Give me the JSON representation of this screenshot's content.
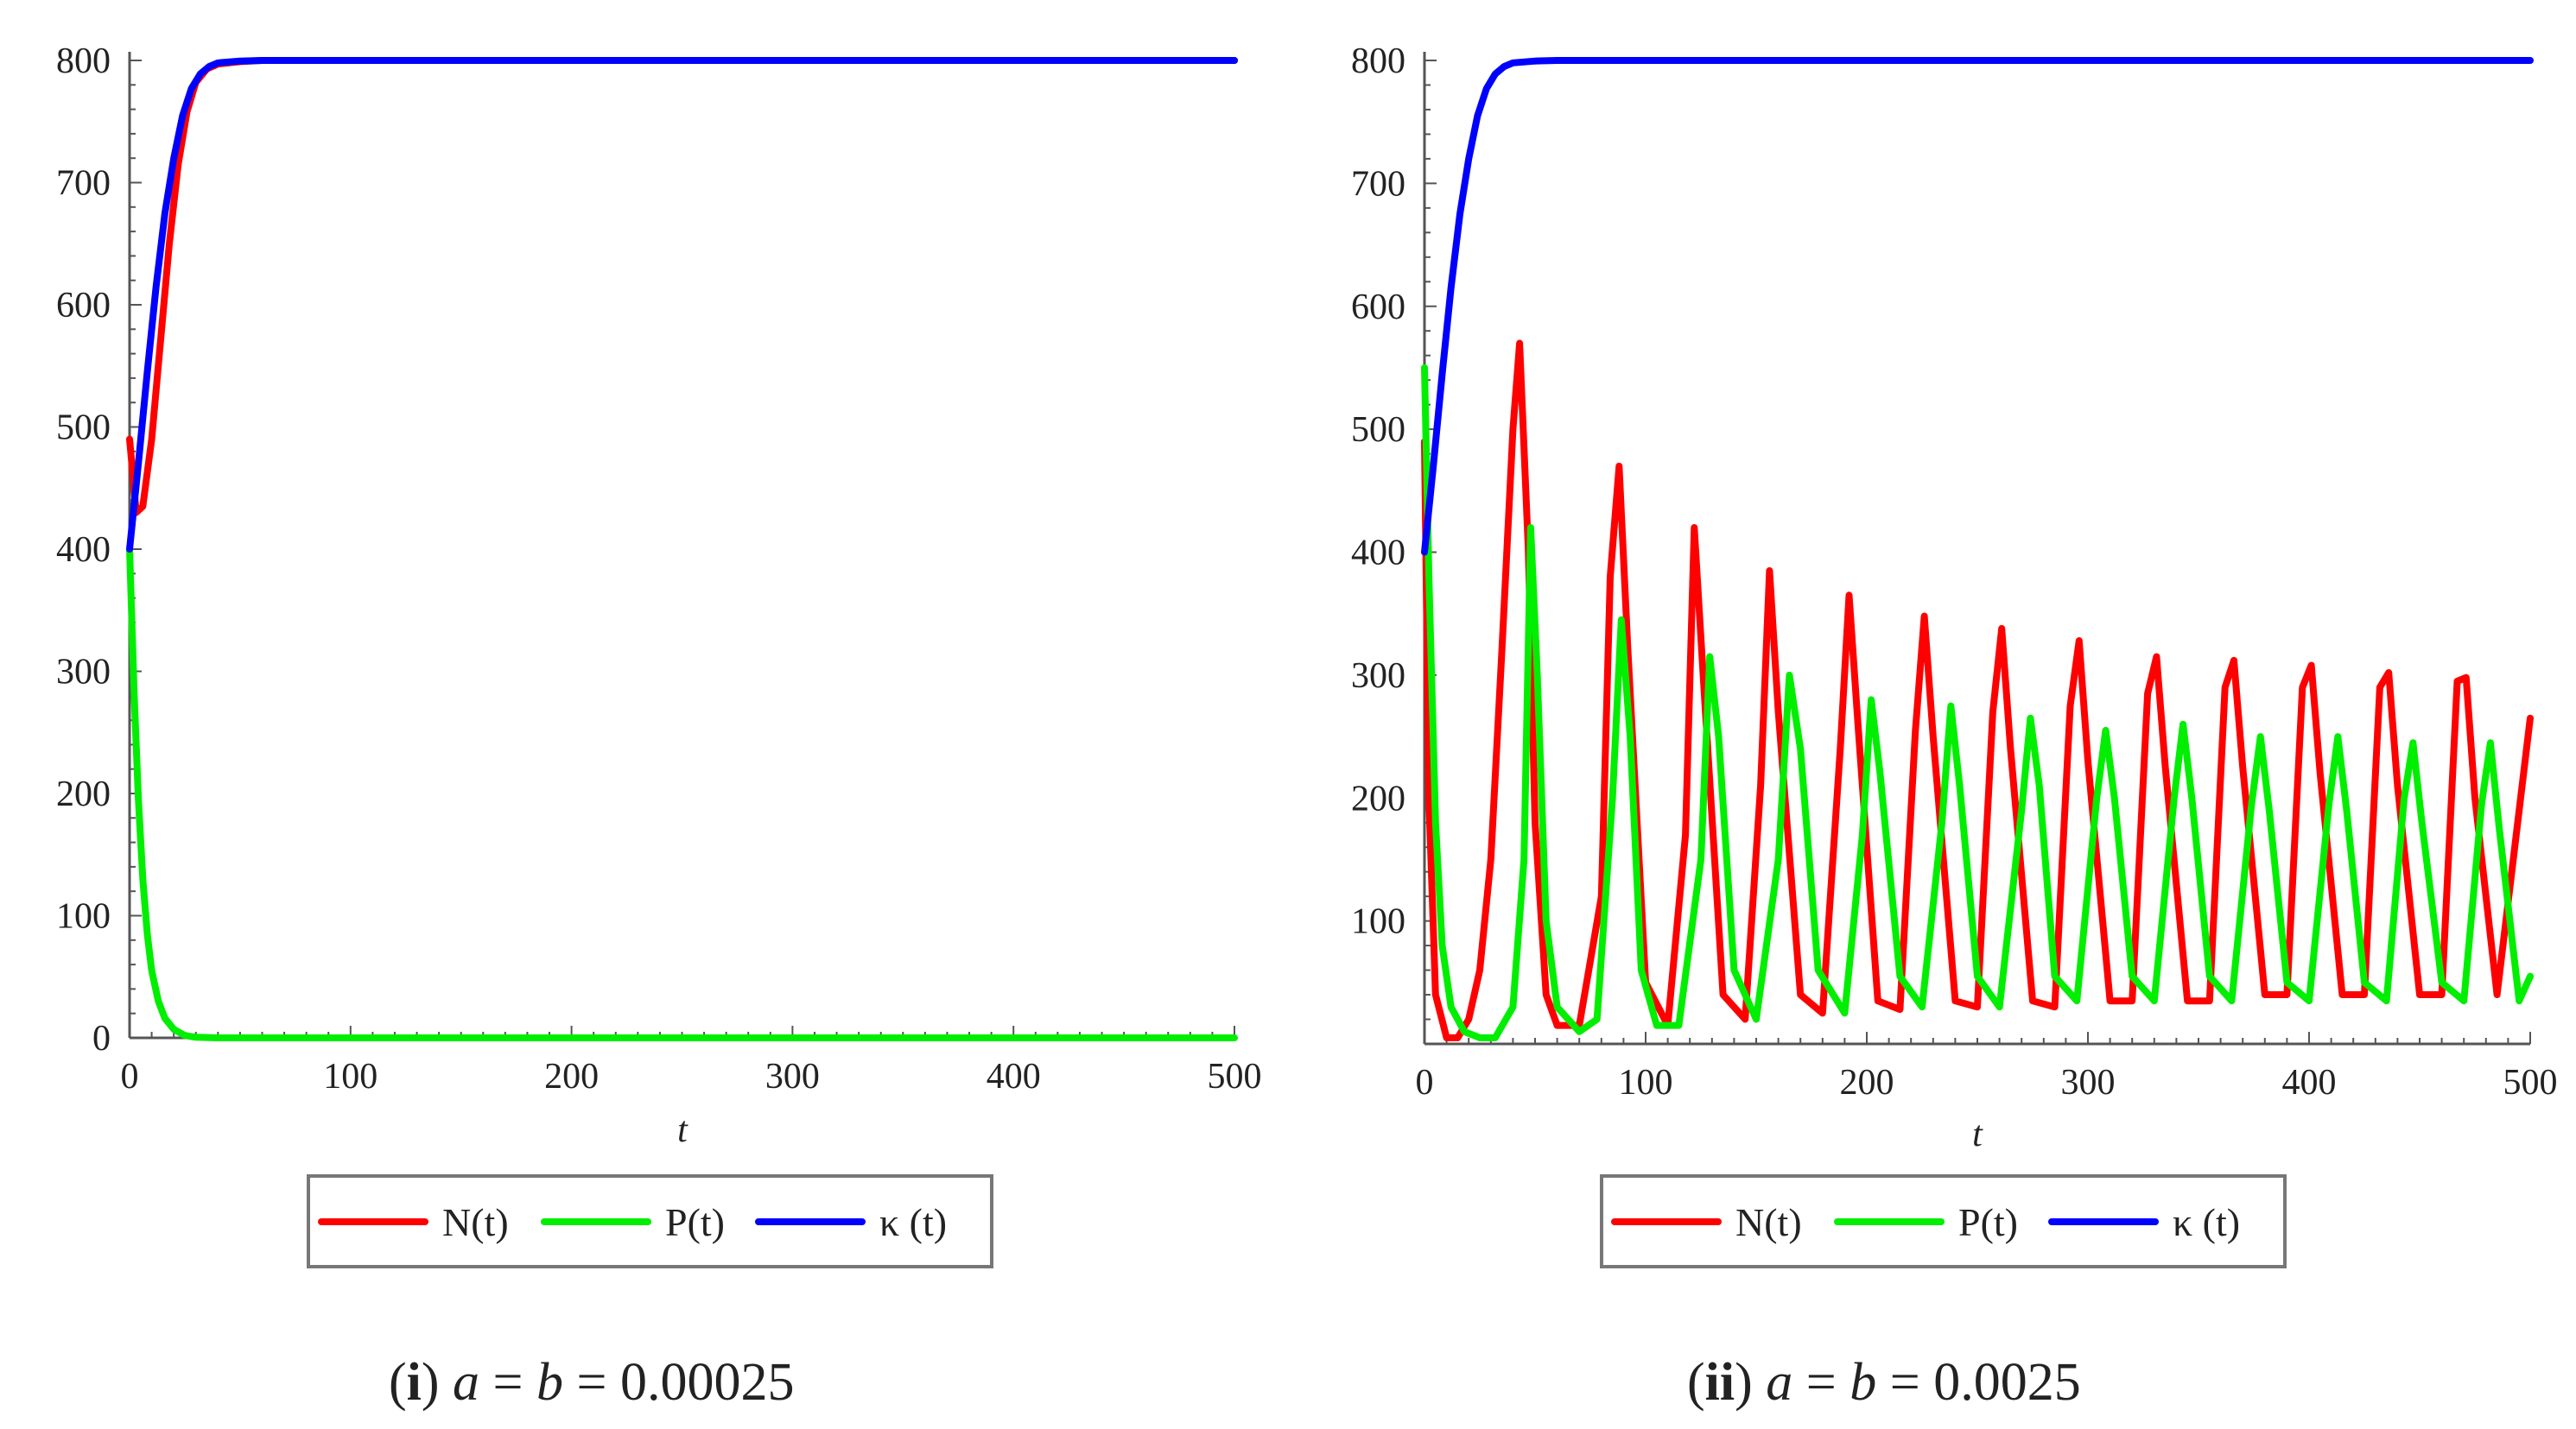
{
  "figure": {
    "panels": [
      {
        "caption": {
          "label": "i",
          "var_a": "a",
          "eq1": " = ",
          "var_b": "b",
          "eq2": " = ",
          "value": "0.00025"
        },
        "legend": [
          {
            "name": "N(t)",
            "color": "#ff0000"
          },
          {
            "name": "P(t)",
            "color": "#00ee00"
          },
          {
            "name": "κ (t)",
            "color": "#0000ff"
          }
        ]
      },
      {
        "caption": {
          "label": "ii",
          "var_a": "a",
          "eq1": " = ",
          "var_b": "b",
          "eq2": " = ",
          "value": "0.0025"
        },
        "legend": [
          {
            "name": "N(t)",
            "color": "#ff0000"
          },
          {
            "name": "P(t)",
            "color": "#00ee00"
          },
          {
            "name": "κ (t)",
            "color": "#0000ff"
          }
        ]
      }
    ]
  },
  "chart_data": [
    {
      "type": "line",
      "title": "(i) a = b = 0.00025",
      "xlabel": "t",
      "ylabel": "",
      "xlim": [
        0,
        500
      ],
      "ylim": [
        0,
        800
      ],
      "xticks": [
        "0",
        "100",
        "200",
        "300",
        "400",
        "500"
      ],
      "yticks": [
        "0",
        "100",
        "200",
        "300",
        "400",
        "500",
        "600",
        "700",
        "800"
      ],
      "series": [
        {
          "name": "N(t)",
          "color": "#ff0000",
          "x": [
            0,
            3,
            6,
            10,
            14,
            18,
            22,
            26,
            30,
            35,
            40,
            50,
            60,
            500
          ],
          "y": [
            490,
            430,
            435,
            490,
            570,
            650,
            715,
            758,
            782,
            793,
            797,
            799,
            800,
            800
          ]
        },
        {
          "name": "P(t)",
          "color": "#00ee00",
          "x": [
            0,
            2,
            4,
            6,
            8,
            10,
            13,
            16,
            20,
            25,
            30,
            40,
            500
          ],
          "y": [
            400,
            285,
            195,
            130,
            85,
            55,
            30,
            16,
            7,
            2,
            0.5,
            0,
            0
          ]
        },
        {
          "name": "κ (t)",
          "color": "#0000ff",
          "x": [
            0,
            4,
            8,
            12,
            16,
            20,
            24,
            28,
            32,
            36,
            40,
            50,
            60,
            500
          ],
          "y": [
            400,
            470,
            545,
            615,
            675,
            720,
            755,
            777,
            789,
            795,
            798,
            799.5,
            800,
            800
          ]
        }
      ]
    },
    {
      "type": "line",
      "title": "(ii) a = b = 0.0025",
      "xlabel": "t",
      "ylabel": "",
      "xlim": [
        0,
        500
      ],
      "ylim": [
        0,
        800
      ],
      "xticks": [
        "0",
        "100",
        "200",
        "300",
        "400",
        "500"
      ],
      "yticks": [
        "100",
        "200",
        "300",
        "400",
        "500",
        "600",
        "700",
        "800"
      ],
      "series": [
        {
          "name": "N(t)",
          "color": "#ff0000",
          "x": [
            0,
            2,
            5,
            10,
            15,
            20,
            25,
            30,
            35,
            40,
            43,
            47,
            50,
            55,
            60,
            70,
            80,
            84,
            88,
            92,
            100,
            110,
            118,
            122,
            126,
            135,
            145,
            152,
            156,
            160,
            170,
            180,
            188,
            192,
            196,
            205,
            215,
            222,
            226,
            230,
            240,
            250,
            257,
            261,
            265,
            275,
            285,
            292,
            296,
            300,
            310,
            320,
            327,
            331,
            335,
            345,
            355,
            362,
            366,
            370,
            380,
            390,
            397,
            401,
            405,
            415,
            425,
            432,
            436,
            440,
            450,
            460,
            467,
            471,
            475,
            485,
            500
          ],
          "y": [
            490,
            200,
            40,
            5,
            5,
            20,
            60,
            150,
            320,
            500,
            570,
            400,
            180,
            40,
            15,
            15,
            120,
            380,
            470,
            320,
            50,
            15,
            170,
            420,
            300,
            40,
            20,
            210,
            385,
            270,
            40,
            25,
            240,
            365,
            260,
            35,
            28,
            255,
            348,
            250,
            35,
            30,
            270,
            338,
            240,
            35,
            30,
            275,
            328,
            230,
            35,
            35,
            285,
            315,
            225,
            35,
            35,
            290,
            312,
            225,
            40,
            40,
            290,
            308,
            220,
            40,
            40,
            290,
            302,
            210,
            40,
            40,
            295,
            298,
            200,
            40,
            265
          ]
        },
        {
          "name": "P(t)",
          "color": "#00ee00",
          "x": [
            0,
            2,
            5,
            8,
            12,
            18,
            25,
            32,
            40,
            45,
            48,
            51,
            55,
            60,
            70,
            78,
            85,
            89,
            93,
            98,
            105,
            115,
            125,
            129,
            133,
            140,
            150,
            160,
            165,
            170,
            178,
            190,
            198,
            202,
            206,
            215,
            225,
            234,
            238,
            242,
            250,
            260,
            270,
            274,
            278,
            285,
            295,
            304,
            308,
            312,
            320,
            330,
            339,
            343,
            347,
            355,
            365,
            374,
            378,
            382,
            390,
            400,
            409,
            413,
            417,
            425,
            435,
            443,
            447,
            451,
            460,
            470,
            478,
            482,
            486,
            495,
            500
          ],
          "y": [
            550,
            380,
            180,
            80,
            30,
            10,
            5,
            5,
            30,
            150,
            420,
            300,
            100,
            30,
            10,
            20,
            200,
            345,
            250,
            60,
            15,
            15,
            150,
            315,
            250,
            60,
            20,
            150,
            300,
            240,
            60,
            25,
            170,
            280,
            220,
            55,
            30,
            180,
            275,
            210,
            55,
            30,
            190,
            265,
            210,
            55,
            35,
            200,
            255,
            200,
            55,
            35,
            200,
            260,
            200,
            55,
            35,
            195,
            250,
            190,
            50,
            35,
            195,
            250,
            190,
            50,
            35,
            200,
            245,
            180,
            50,
            35,
            195,
            245,
            175,
            35,
            55
          ]
        },
        {
          "name": "κ (t)",
          "color": "#0000ff",
          "x": [
            0,
            4,
            8,
            12,
            16,
            20,
            24,
            28,
            32,
            36,
            40,
            50,
            60,
            500
          ],
          "y": [
            400,
            470,
            545,
            615,
            675,
            720,
            755,
            777,
            789,
            795,
            798,
            799.5,
            800,
            800
          ]
        }
      ]
    }
  ]
}
